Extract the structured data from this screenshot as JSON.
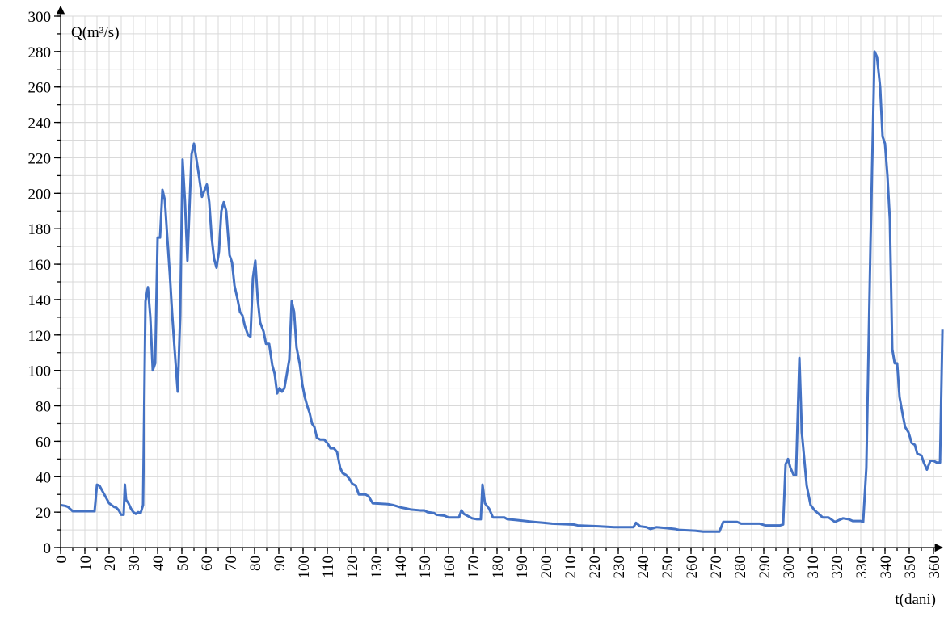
{
  "chart_data": {
    "type": "line",
    "y_label": "Q(m³/s)",
    "x_label": "t(dani)",
    "color": "#4472c4",
    "xlim": [
      0,
      365
    ],
    "ylim": [
      0,
      300
    ],
    "xticks": [
      0,
      10,
      20,
      30,
      40,
      50,
      60,
      70,
      80,
      90,
      100,
      110,
      120,
      130,
      140,
      150,
      160,
      170,
      180,
      190,
      200,
      210,
      220,
      230,
      240,
      250,
      260,
      270,
      280,
      290,
      300,
      310,
      320,
      330,
      340,
      350,
      360
    ],
    "yticks": [
      0,
      20,
      40,
      60,
      80,
      100,
      120,
      140,
      160,
      180,
      200,
      220,
      240,
      260,
      280,
      300
    ],
    "grid": true,
    "minor_grid": {
      "x": 5,
      "y": 10
    },
    "series": [
      {
        "name": "Q",
        "x": [
          0,
          2,
          3,
          5,
          14,
          15,
          16,
          18,
          20,
          22,
          23,
          24,
          25,
          26,
          26.5,
          27,
          28,
          29,
          30,
          31,
          32,
          33,
          34,
          35,
          36,
          37,
          38,
          39,
          40,
          41,
          42,
          43,
          44,
          45,
          46,
          47,
          48.3,
          49.3,
          50.3,
          51.3,
          52.3,
          54,
          55,
          56.5,
          58.3,
          60.3,
          61.3,
          62.3,
          63.3,
          64.3,
          65.3,
          66.3,
          67.3,
          68.3,
          69.7,
          70.7,
          71.7,
          73,
          74,
          75,
          76,
          77.3,
          78.3,
          79.3,
          80.3,
          81.3,
          82.3,
          83.7,
          84.7,
          86,
          87.3,
          88.3,
          89.3,
          90.3,
          91.3,
          92.3,
          94.3,
          95.3,
          96.3,
          97.3,
          98.7,
          99.7,
          100.7,
          101.7,
          102.7,
          103.7,
          104.7,
          105.7,
          107,
          108.7,
          110,
          111.3,
          112.7,
          114,
          115.3,
          116.3,
          117.7,
          119,
          120.3,
          121.7,
          123,
          125.7,
          127,
          128.7,
          135,
          137,
          138.3,
          140.7,
          142.7,
          144.3,
          148.3,
          150,
          151.3,
          154,
          155,
          158.3,
          160,
          164.3,
          165.3,
          166.3,
          167.7,
          169.7,
          171.7,
          173.3,
          174,
          175,
          176.7,
          178.3,
          183,
          184.3,
          188.3,
          191.7,
          195,
          199,
          202.7,
          211.7,
          213.3,
          221.7,
          228.3,
          236.3,
          237.3,
          239,
          241.7,
          243.3,
          245.7,
          250,
          253.3,
          255,
          261.7,
          265,
          271.7,
          273.3,
          279,
          280.7,
          288.3,
          290.7,
          296.7,
          298,
          299,
          300,
          301,
          302.3,
          303.3,
          304.7,
          305.7,
          306.7,
          307.7,
          309.3,
          311,
          312.7,
          314.3,
          316.7,
          319.3,
          321,
          322.7,
          325,
          326.7,
          330,
          331,
          332.3,
          334,
          335.7,
          336.7,
          338,
          339,
          340,
          341,
          342,
          343,
          344,
          345,
          346,
          347.3,
          348.3,
          349.7,
          351,
          352.3,
          353.3,
          355,
          356,
          357.3,
          358.7,
          360,
          361.3,
          362.7,
          363.7
        ],
        "values": [
          24,
          23.5,
          23,
          20.5,
          20.5,
          35.5,
          35,
          30,
          25,
          23,
          22.5,
          21,
          18.5,
          18.5,
          35.5,
          27,
          25,
          22,
          20,
          19,
          20,
          19.5,
          24,
          139,
          147,
          130,
          100,
          104,
          175,
          175,
          202,
          196,
          175,
          155,
          132,
          112,
          88,
          130,
          219,
          195,
          162,
          222,
          228,
          215,
          198,
          205,
          195,
          175,
          163,
          158,
          167,
          190,
          195,
          190,
          165,
          161,
          148,
          140,
          133,
          131,
          125,
          120,
          119,
          152,
          162,
          140,
          127,
          122,
          115,
          115,
          103,
          98,
          87,
          90,
          88,
          90,
          106,
          139,
          133,
          113,
          103,
          92,
          85,
          80,
          76,
          70,
          68,
          62,
          61,
          61,
          59,
          56,
          56,
          54,
          45,
          42,
          41,
          39,
          36,
          35,
          30,
          30,
          29,
          25,
          24.5,
          24,
          23.5,
          22.5,
          22,
          21.5,
          21,
          21,
          20,
          19.5,
          18.5,
          18,
          17,
          17,
          21,
          19,
          18,
          16.5,
          16,
          16,
          35.5,
          25,
          22,
          17,
          17,
          16,
          15.5,
          15,
          14.5,
          14,
          13.5,
          13,
          12.5,
          12,
          11.5,
          11.5,
          14,
          12,
          11.5,
          10.5,
          11.5,
          11,
          10.5,
          10,
          9.5,
          9,
          9,
          14.5,
          14.5,
          13.5,
          13.5,
          12.5,
          12.5,
          13,
          47,
          50,
          45,
          41,
          41,
          107,
          65,
          50,
          35,
          24,
          21,
          19,
          17,
          17,
          14.5,
          15.5,
          16.5,
          16,
          15,
          15,
          14.5,
          45,
          170,
          280,
          277,
          260,
          232,
          228,
          210,
          185,
          112,
          104,
          104,
          85,
          75,
          68,
          65,
          59,
          58,
          53,
          52,
          48,
          44,
          49,
          49,
          48,
          48,
          123
        ]
      }
    ]
  }
}
